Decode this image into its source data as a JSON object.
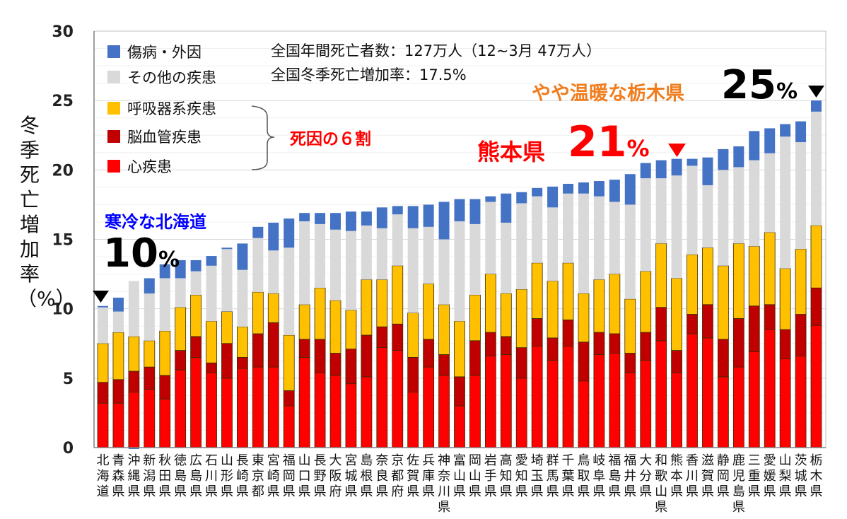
{
  "chart_data": {
    "type": "bar",
    "stacked": true,
    "ylabel": "冬季死亡増加率（%）",
    "ylim": [
      0,
      30
    ],
    "yticks": [
      "0",
      "5",
      "10",
      "15",
      "20",
      "25",
      "30"
    ],
    "grid": true,
    "legend_position": "top-left",
    "categories": [
      "北海道",
      "青森県",
      "沖縄県",
      "新潟県",
      "秋田県",
      "徳島県",
      "広島県",
      "石川県",
      "山形県",
      "長崎県",
      "東京都",
      "宮崎県",
      "福岡県",
      "山口県",
      "長野県",
      "大阪府",
      "宮城県",
      "島根県",
      "奈良県",
      "京都府",
      "佐賀県",
      "兵庫県",
      "神奈川県",
      "富山県",
      "岡山県",
      "岩手県",
      "高知県",
      "愛知県",
      "埼玉県",
      "群馬県",
      "千葉県",
      "鳥取県",
      "岐阜県",
      "福島県",
      "福井県",
      "大分県",
      "和歌山県",
      "熊本県",
      "香川県",
      "滋賀県",
      "静岡県",
      "鹿児島県",
      "三重県",
      "愛媛県",
      "山梨県",
      "茨城県",
      "栃木県"
    ],
    "series": [
      {
        "name": "心疾患",
        "color": "#FF0000",
        "values": [
          3.2,
          3.2,
          4.0,
          4.2,
          3.5,
          5.6,
          6.5,
          5.4,
          5.0,
          5.7,
          5.8,
          5.8,
          3.0,
          6.5,
          5.4,
          5.2,
          4.6,
          5.1,
          7.2,
          7.0,
          4.0,
          5.8,
          5.2,
          3.0,
          5.2,
          6.6,
          6.7,
          5.0,
          7.3,
          6.3,
          7.3,
          4.8,
          6.7,
          6.8,
          5.4,
          6.3,
          7.7,
          5.4,
          8.2,
          7.9,
          5.1,
          5.8,
          6.9,
          8.5,
          6.4,
          6.6,
          8.8
        ]
      },
      {
        "name": "脳血管疾患",
        "color": "#C00000",
        "values": [
          1.5,
          1.7,
          1.5,
          1.6,
          1.7,
          1.4,
          1.5,
          0.7,
          2.5,
          0.8,
          2.4,
          3.2,
          1.1,
          1.3,
          2.4,
          1.6,
          2.5,
          3.0,
          1.5,
          1.9,
          2.5,
          2.0,
          1.5,
          2.1,
          2.5,
          1.7,
          1.3,
          2.2,
          2.0,
          1.6,
          1.9,
          2.8,
          1.6,
          1.4,
          1.4,
          2.0,
          2.4,
          1.6,
          1.4,
          2.4,
          2.7,
          3.5,
          3.3,
          1.8,
          2.1,
          3.0,
          2.7
        ]
      },
      {
        "name": "呼吸器系疾患",
        "color": "#FFC000",
        "values": [
          2.8,
          3.4,
          2.5,
          1.9,
          3.2,
          3.1,
          3.0,
          3.0,
          2.3,
          2.2,
          3.0,
          2.1,
          4.0,
          2.5,
          3.7,
          3.8,
          2.8,
          4.0,
          3.4,
          4.2,
          3.2,
          4.0,
          3.6,
          4.0,
          3.3,
          4.2,
          3.1,
          4.2,
          4.0,
          4.1,
          4.1,
          3.5,
          3.8,
          4.3,
          3.9,
          4.4,
          4.6,
          5.2,
          4.3,
          4.1,
          5.3,
          5.4,
          4.3,
          5.2,
          4.4,
          4.7,
          4.5
        ]
      },
      {
        "name": "その他の疾患",
        "color": "#D9D9D9",
        "values": [
          2.6,
          1.5,
          4.0,
          3.4,
          3.8,
          2.1,
          1.7,
          4.0,
          4.5,
          4.1,
          3.9,
          3.1,
          6.3,
          6.0,
          4.6,
          5.1,
          5.7,
          3.9,
          3.7,
          3.7,
          6.1,
          4.1,
          4.7,
          7.2,
          5.1,
          5.2,
          5.1,
          6.2,
          4.8,
          5.3,
          5.0,
          7.2,
          6.0,
          5.2,
          6.8,
          6.7,
          4.7,
          7.4,
          6.4,
          4.5,
          6.9,
          5.5,
          6.2,
          5.7,
          9.5,
          7.7,
          8.2
        ]
      },
      {
        "name": "傷病・外因",
        "color": "#4472C4",
        "values": [
          0.1,
          1.0,
          -0.1,
          1.1,
          1.0,
          1.3,
          0.8,
          0.7,
          0.1,
          1.9,
          0.8,
          2.0,
          2.1,
          0.6,
          0.8,
          1.2,
          1.4,
          1.0,
          1.5,
          0.6,
          1.6,
          1.6,
          2.7,
          1.6,
          1.8,
          0.4,
          2.1,
          0.8,
          0.6,
          1.5,
          0.7,
          0.8,
          1.1,
          1.6,
          2.2,
          1.1,
          1.3,
          1.2,
          0.5,
          2.0,
          1.5,
          1.5,
          2.1,
          1.8,
          0.9,
          1.5,
          0.8
        ]
      }
    ]
  },
  "legend": {
    "items": [
      "傷病・外因",
      "その他の疾患",
      "呼吸器系疾患",
      "脳血管疾患",
      "心疾患"
    ],
    "bracket_label": "死因の６割"
  },
  "notes": {
    "national_deaths": "全国年間死亡者数：127万人（12~3月 47万人）",
    "national_rate": "全国冬季死亡増加率：17.5%"
  },
  "annotations": {
    "hokkaido": {
      "label": "寒冷な北海道",
      "value": "10",
      "unit": "%",
      "color": "#0000FF"
    },
    "kumamoto": {
      "label": "熊本県",
      "value": "21",
      "unit": "%",
      "color": "#FF0000"
    },
    "tochigi": {
      "label": "やや温暖な栃木県",
      "value": "25",
      "unit": "%",
      "color": "#F07D1E"
    }
  }
}
